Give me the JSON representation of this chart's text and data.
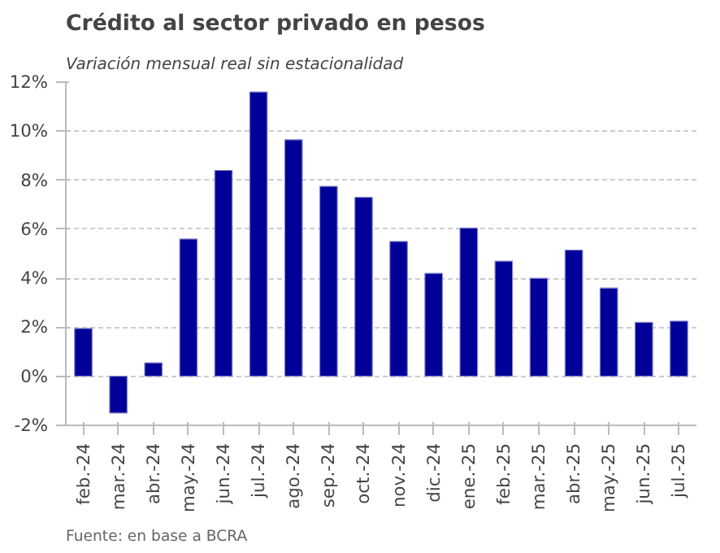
{
  "chart_data": {
    "type": "bar",
    "title": "Crédito al sector privado en pesos",
    "subtitle": "Variación mensual real sin estacionalidad",
    "categories": [
      "feb.-24",
      "mar.-24",
      "abr.-24",
      "may.-24",
      "jun.-24",
      "jul.-24",
      "ago.-24",
      "sep.-24",
      "oct.-24",
      "nov.-24",
      "dic.-24",
      "ene.-25",
      "feb.-25",
      "mar.-25",
      "abr.-25",
      "may.-25",
      "jun.-25",
      "jul.-25"
    ],
    "values": [
      1.95,
      -1.5,
      0.55,
      5.6,
      8.4,
      11.6,
      9.65,
      7.75,
      7.3,
      5.5,
      4.2,
      6.05,
      4.7,
      4.0,
      5.15,
      3.6,
      2.2,
      2.25
    ],
    "color": "#000099",
    "ylim": [
      -2,
      12
    ],
    "yticks": [
      {
        "value": -2,
        "label": "-2%"
      },
      {
        "value": 0,
        "label": "0%"
      },
      {
        "value": 2,
        "label": "2%"
      },
      {
        "value": 4,
        "label": "4%"
      },
      {
        "value": 6,
        "label": "6%"
      },
      {
        "value": 8,
        "label": "8%"
      },
      {
        "value": 10,
        "label": "10%"
      },
      {
        "value": 12,
        "label": "12%"
      }
    ],
    "grid": "y",
    "annotations": [
      "Fuente: en base a BCRA"
    ]
  }
}
